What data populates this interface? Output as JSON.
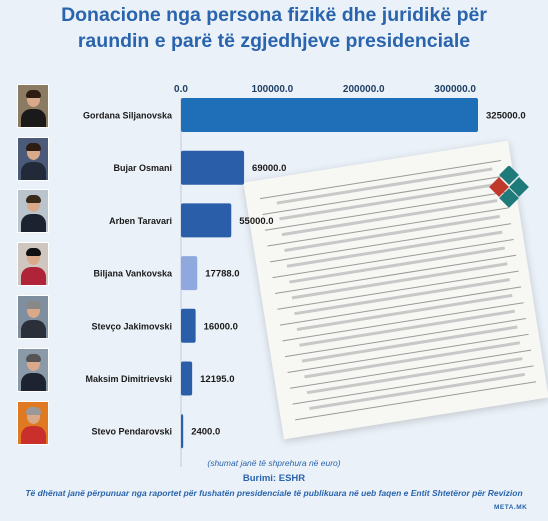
{
  "title_line1": "Donacione nga persona fizikë dhe juridikë për",
  "title_line2": "raundin e parë të zgjedhjeve presidenciale",
  "note": "(shumat janë të shprehura në euro)",
  "source": "Burimi: ESHR",
  "footnote": "Të dhënat janë përpunuar nga raportet për fushatën presidenciale të publikuara në ueb faqen e Entit Shtetëror për Revizion",
  "brand": "META.MK",
  "colors": {
    "bar_dark": "#2b5ea8",
    "bar_light": "#8fa9df",
    "bar_first": "#1f6fb8",
    "title": "#2a64ad"
  },
  "chart_data": {
    "type": "bar",
    "orientation": "horizontal",
    "categories": [
      "Gordana Siljanovska",
      "Bujar Osmani",
      "Arben Taravari",
      "Biljana Vankovska",
      "Stevço Jakimovski",
      "Maksim Dimitrievski",
      "Stevo Pendarovski"
    ],
    "values": [
      325000,
      69000,
      55000,
      17788,
      16000,
      12195,
      2400
    ],
    "value_labels": [
      "325000.0",
      "69000.0",
      "55000.0",
      "17788.0",
      "16000.0",
      "12195.0",
      "2400.0"
    ],
    "ticks": [
      0,
      100000,
      200000,
      300000
    ],
    "tick_labels": [
      "0.0",
      "100000.0",
      "200000.0",
      "300000.0"
    ],
    "axis_position": "top",
    "grid": false,
    "xlim": [
      0,
      325000
    ]
  }
}
